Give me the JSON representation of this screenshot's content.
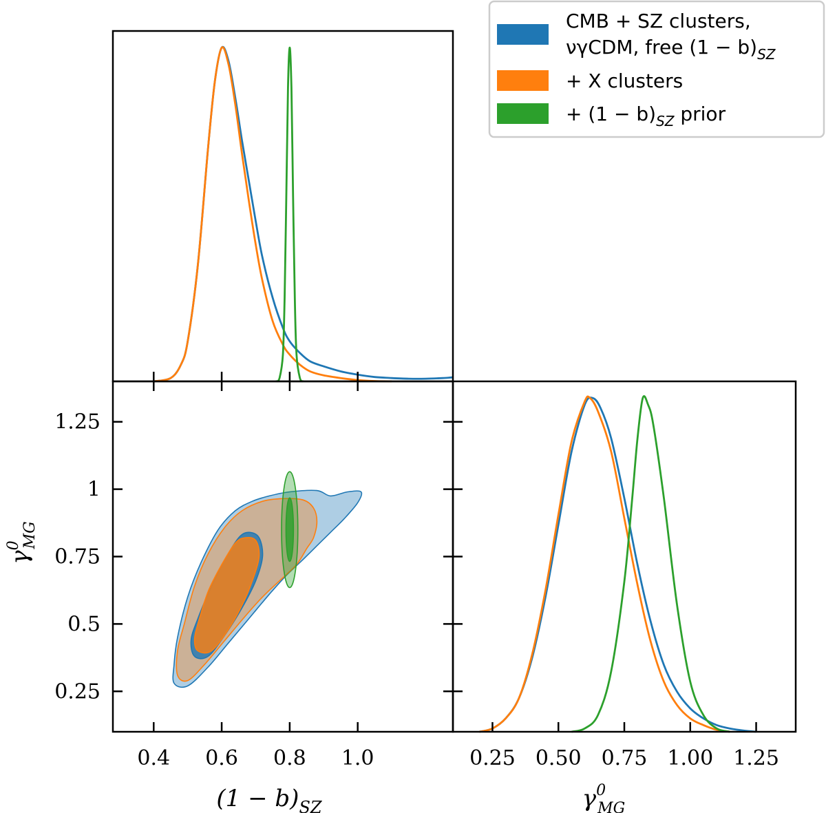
{
  "colors": {
    "blue": "#1f77b4",
    "orange": "#ff7f0e",
    "green": "#2ca02c"
  },
  "legend": {
    "placement": "top-right",
    "entries": [
      {
        "color": "#1f77b4",
        "line1": "CMB + SZ clusters,",
        "line2": "νγCDM, free (1 − b)",
        "line2_sub": "SZ"
      },
      {
        "color": "#ff7f0e",
        "line1": "+ X clusters"
      },
      {
        "color": "#2ca02c",
        "line1": "+ (1 − b)",
        "line1_sub": "SZ",
        "line1_tail": " prior"
      }
    ]
  },
  "chart_data": [
    {
      "type": "line",
      "panel": "1d-posterior",
      "param": "(1-b)_SZ",
      "xlim": [
        0.28,
        1.28
      ],
      "ylim": [
        0,
        1.05
      ],
      "series": [
        {
          "color": "#1f77b4",
          "x": [
            0.4,
            0.45,
            0.48,
            0.5,
            0.53,
            0.56,
            0.58,
            0.6,
            0.62,
            0.64,
            0.66,
            0.68,
            0.7,
            0.72,
            0.75,
            0.78,
            0.8,
            0.83,
            0.86,
            0.9,
            0.95,
            1.0,
            1.05,
            1.1,
            1.15,
            1.2,
            1.25,
            1.28
          ],
          "y": [
            0,
            0.01,
            0.05,
            0.12,
            0.35,
            0.7,
            0.9,
            1.0,
            0.96,
            0.85,
            0.72,
            0.6,
            0.48,
            0.37,
            0.25,
            0.16,
            0.12,
            0.085,
            0.06,
            0.045,
            0.03,
            0.02,
            0.013,
            0.01,
            0.008,
            0.008,
            0.01,
            0.012
          ]
        },
        {
          "color": "#ff7f0e",
          "x": [
            0.4,
            0.45,
            0.48,
            0.5,
            0.53,
            0.56,
            0.58,
            0.6,
            0.62,
            0.64,
            0.66,
            0.68,
            0.7,
            0.72,
            0.75,
            0.78,
            0.8,
            0.83,
            0.86,
            0.9,
            0.95,
            1.0,
            1.05,
            1.1
          ],
          "y": [
            0,
            0.01,
            0.05,
            0.12,
            0.35,
            0.7,
            0.9,
            1.0,
            0.95,
            0.83,
            0.68,
            0.54,
            0.41,
            0.3,
            0.18,
            0.11,
            0.08,
            0.05,
            0.03,
            0.018,
            0.01,
            0.004,
            0.001,
            0
          ]
        },
        {
          "color": "#2ca02c",
          "x": [
            0.76,
            0.77,
            0.78,
            0.785,
            0.79,
            0.795,
            0.8,
            0.805,
            0.81,
            0.815,
            0.82,
            0.83,
            0.84
          ],
          "y": [
            0,
            0.01,
            0.08,
            0.25,
            0.55,
            0.88,
            1.0,
            0.88,
            0.55,
            0.25,
            0.08,
            0.01,
            0
          ]
        }
      ]
    },
    {
      "type": "contour",
      "panel": "2d-posterior",
      "xlabel": "(1 − b)",
      "xlabel_sub": "SZ",
      "ylabel": "γ",
      "ylabel_sup": "0",
      "ylabel_sub": "MG",
      "xlim": [
        0.28,
        1.28
      ],
      "ylim": [
        0.1,
        1.4
      ],
      "xticks": [
        0.4,
        0.6,
        0.8,
        1.0
      ],
      "xtick_labels": [
        "0.4",
        "0.6",
        "0.8",
        "1.0"
      ],
      "yticks": [
        0.25,
        0.5,
        0.75,
        1.0,
        1.25
      ],
      "ytick_labels": [
        "0.25",
        "0.5",
        "0.75",
        "1",
        "1.25"
      ],
      "regions": [
        {
          "series": "blue",
          "level": "95%",
          "color": "#1f77b4",
          "points": [
            [
              0.46,
              0.28
            ],
            [
              0.5,
              0.27
            ],
            [
              0.56,
              0.34
            ],
            [
              0.62,
              0.43
            ],
            [
              0.68,
              0.52
            ],
            [
              0.74,
              0.61
            ],
            [
              0.79,
              0.68
            ],
            [
              0.84,
              0.74
            ],
            [
              0.88,
              0.79
            ],
            [
              0.92,
              0.84
            ],
            [
              0.96,
              0.89
            ],
            [
              1.0,
              0.95
            ],
            [
              1.01,
              0.99
            ],
            [
              0.97,
              0.99
            ],
            [
              0.92,
              0.975
            ],
            [
              0.88,
              0.995
            ],
            [
              0.8,
              0.99
            ],
            [
              0.74,
              0.975
            ],
            [
              0.69,
              0.955
            ],
            [
              0.64,
              0.92
            ],
            [
              0.59,
              0.85
            ],
            [
              0.54,
              0.73
            ],
            [
              0.5,
              0.6
            ],
            [
              0.47,
              0.45
            ],
            [
              0.46,
              0.35
            ]
          ]
        },
        {
          "series": "orange",
          "level": "95%",
          "color": "#ff7f0e",
          "points": [
            [
              0.47,
              0.31
            ],
            [
              0.5,
              0.29
            ],
            [
              0.55,
              0.35
            ],
            [
              0.61,
              0.44
            ],
            [
              0.67,
              0.53
            ],
            [
              0.72,
              0.6
            ],
            [
              0.77,
              0.66
            ],
            [
              0.82,
              0.72
            ],
            [
              0.85,
              0.78
            ],
            [
              0.87,
              0.82
            ],
            [
              0.88,
              0.88
            ],
            [
              0.87,
              0.93
            ],
            [
              0.84,
              0.96
            ],
            [
              0.78,
              0.965
            ],
            [
              0.72,
              0.955
            ],
            [
              0.66,
              0.92
            ],
            [
              0.61,
              0.86
            ],
            [
              0.56,
              0.76
            ],
            [
              0.52,
              0.64
            ],
            [
              0.49,
              0.5
            ],
            [
              0.47,
              0.4
            ]
          ]
        },
        {
          "series": "blue",
          "level": "68%",
          "color": "#1f77b4",
          "points": [
            [
              0.52,
              0.38
            ],
            [
              0.56,
              0.38
            ],
            [
              0.61,
              0.46
            ],
            [
              0.66,
              0.56
            ],
            [
              0.7,
              0.66
            ],
            [
              0.72,
              0.75
            ],
            [
              0.71,
              0.82
            ],
            [
              0.68,
              0.84
            ],
            [
              0.65,
              0.82
            ],
            [
              0.61,
              0.74
            ],
            [
              0.57,
              0.64
            ],
            [
              0.53,
              0.52
            ],
            [
              0.51,
              0.44
            ]
          ]
        },
        {
          "series": "orange",
          "level": "68%",
          "color": "#ff7f0e",
          "points": [
            [
              0.53,
              0.4
            ],
            [
              0.57,
              0.4
            ],
            [
              0.62,
              0.48
            ],
            [
              0.66,
              0.57
            ],
            [
              0.69,
              0.66
            ],
            [
              0.71,
              0.75
            ],
            [
              0.7,
              0.81
            ],
            [
              0.67,
              0.82
            ],
            [
              0.64,
              0.8
            ],
            [
              0.6,
              0.72
            ],
            [
              0.56,
              0.62
            ],
            [
              0.53,
              0.5
            ],
            [
              0.52,
              0.44
            ]
          ]
        },
        {
          "series": "green",
          "level": "95%",
          "color": "#2ca02c",
          "ellipse": {
            "cx": 0.8,
            "cy": 0.85,
            "rx": 0.024,
            "ry": 0.215
          }
        },
        {
          "series": "green",
          "level": "68%",
          "color": "#2ca02c",
          "ellipse": {
            "cx": 0.8,
            "cy": 0.85,
            "rx": 0.011,
            "ry": 0.118
          }
        }
      ]
    },
    {
      "type": "line",
      "panel": "1d-posterior",
      "param": "γ^0_MG",
      "xlabel": "γ",
      "xlabel_sup": "0",
      "xlabel_sub": "MG",
      "xlim": [
        0.1,
        1.4
      ],
      "ylim": [
        0,
        1.05
      ],
      "xticks": [
        0.25,
        0.5,
        0.75,
        1.0,
        1.25
      ],
      "xtick_labels": [
        "0.25",
        "0.50",
        "0.75",
        "1.00",
        "1.25"
      ],
      "series": [
        {
          "color": "#1f77b4",
          "x": [
            0.2,
            0.25,
            0.3,
            0.35,
            0.4,
            0.45,
            0.5,
            0.55,
            0.6,
            0.63,
            0.66,
            0.7,
            0.75,
            0.8,
            0.85,
            0.9,
            0.95,
            1.0,
            1.05,
            1.1,
            1.15,
            1.2,
            1.25
          ],
          "y": [
            0,
            0.01,
            0.04,
            0.1,
            0.22,
            0.4,
            0.62,
            0.84,
            0.98,
            1.0,
            0.97,
            0.88,
            0.7,
            0.5,
            0.33,
            0.2,
            0.12,
            0.07,
            0.04,
            0.02,
            0.01,
            0.004,
            0
          ]
        },
        {
          "color": "#ff7f0e",
          "x": [
            0.2,
            0.25,
            0.3,
            0.35,
            0.4,
            0.45,
            0.5,
            0.55,
            0.6,
            0.62,
            0.65,
            0.7,
            0.75,
            0.8,
            0.85,
            0.9,
            0.95,
            1.0,
            1.05,
            1.1,
            1.15
          ],
          "y": [
            0,
            0.01,
            0.04,
            0.1,
            0.23,
            0.42,
            0.65,
            0.87,
            0.99,
            1.0,
            0.96,
            0.84,
            0.64,
            0.44,
            0.27,
            0.15,
            0.08,
            0.04,
            0.02,
            0.006,
            0
          ]
        },
        {
          "color": "#2ca02c",
          "x": [
            0.55,
            0.6,
            0.65,
            0.7,
            0.75,
            0.78,
            0.8,
            0.82,
            0.84,
            0.86,
            0.9,
            0.95,
            1.0,
            1.05,
            1.1,
            1.15
          ],
          "y": [
            0,
            0.01,
            0.05,
            0.18,
            0.45,
            0.7,
            0.88,
            1.0,
            0.98,
            0.92,
            0.7,
            0.38,
            0.15,
            0.05,
            0.01,
            0
          ]
        }
      ]
    }
  ]
}
